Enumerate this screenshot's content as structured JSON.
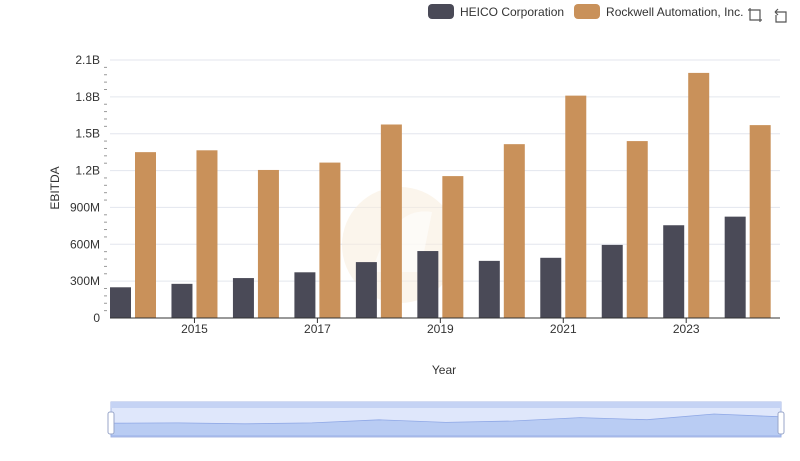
{
  "legend": {
    "series_a": "HEICO Corporation",
    "series_b": "Rockwell Automation, Inc."
  },
  "toolbox": {
    "zoom_icon": "zoom-select-icon",
    "restore_icon": "restore-icon"
  },
  "colors": {
    "heico": "#4a4a57",
    "rockwell": "#c9915a",
    "grid": "#e3e6ee",
    "zoom_fill": "#dfe7fb",
    "zoom_border": "#a9b9e6"
  },
  "chart_data": {
    "type": "bar",
    "xlabel": "Year",
    "ylabel": "EBITDA",
    "ylim": [
      0,
      2100000000
    ],
    "y_ticks": [
      "0",
      "300M",
      "600M",
      "900M",
      "1.2B",
      "1.5B",
      "1.8B",
      "2.1B"
    ],
    "x_tick_labels": [
      "2015",
      "2017",
      "2019",
      "2021",
      "2023"
    ],
    "categories": [
      "2014",
      "2015",
      "2016",
      "2017",
      "2018",
      "2019",
      "2020",
      "2021",
      "2022",
      "2023",
      "2024"
    ],
    "series": [
      {
        "name": "HEICO Corporation",
        "values": [
          250000000,
          278000000,
          325000000,
          372000000,
          455000000,
          545000000,
          465000000,
          490000000,
          595000000,
          755000000,
          825000000
        ]
      },
      {
        "name": "Rockwell Automation, Inc.",
        "values": [
          1350000000,
          1365000000,
          1205000000,
          1265000000,
          1575000000,
          1155000000,
          1415000000,
          1810000000,
          1440000000,
          1995000000,
          1570000000
        ]
      }
    ],
    "grid": true,
    "legend_position": "top-right"
  }
}
